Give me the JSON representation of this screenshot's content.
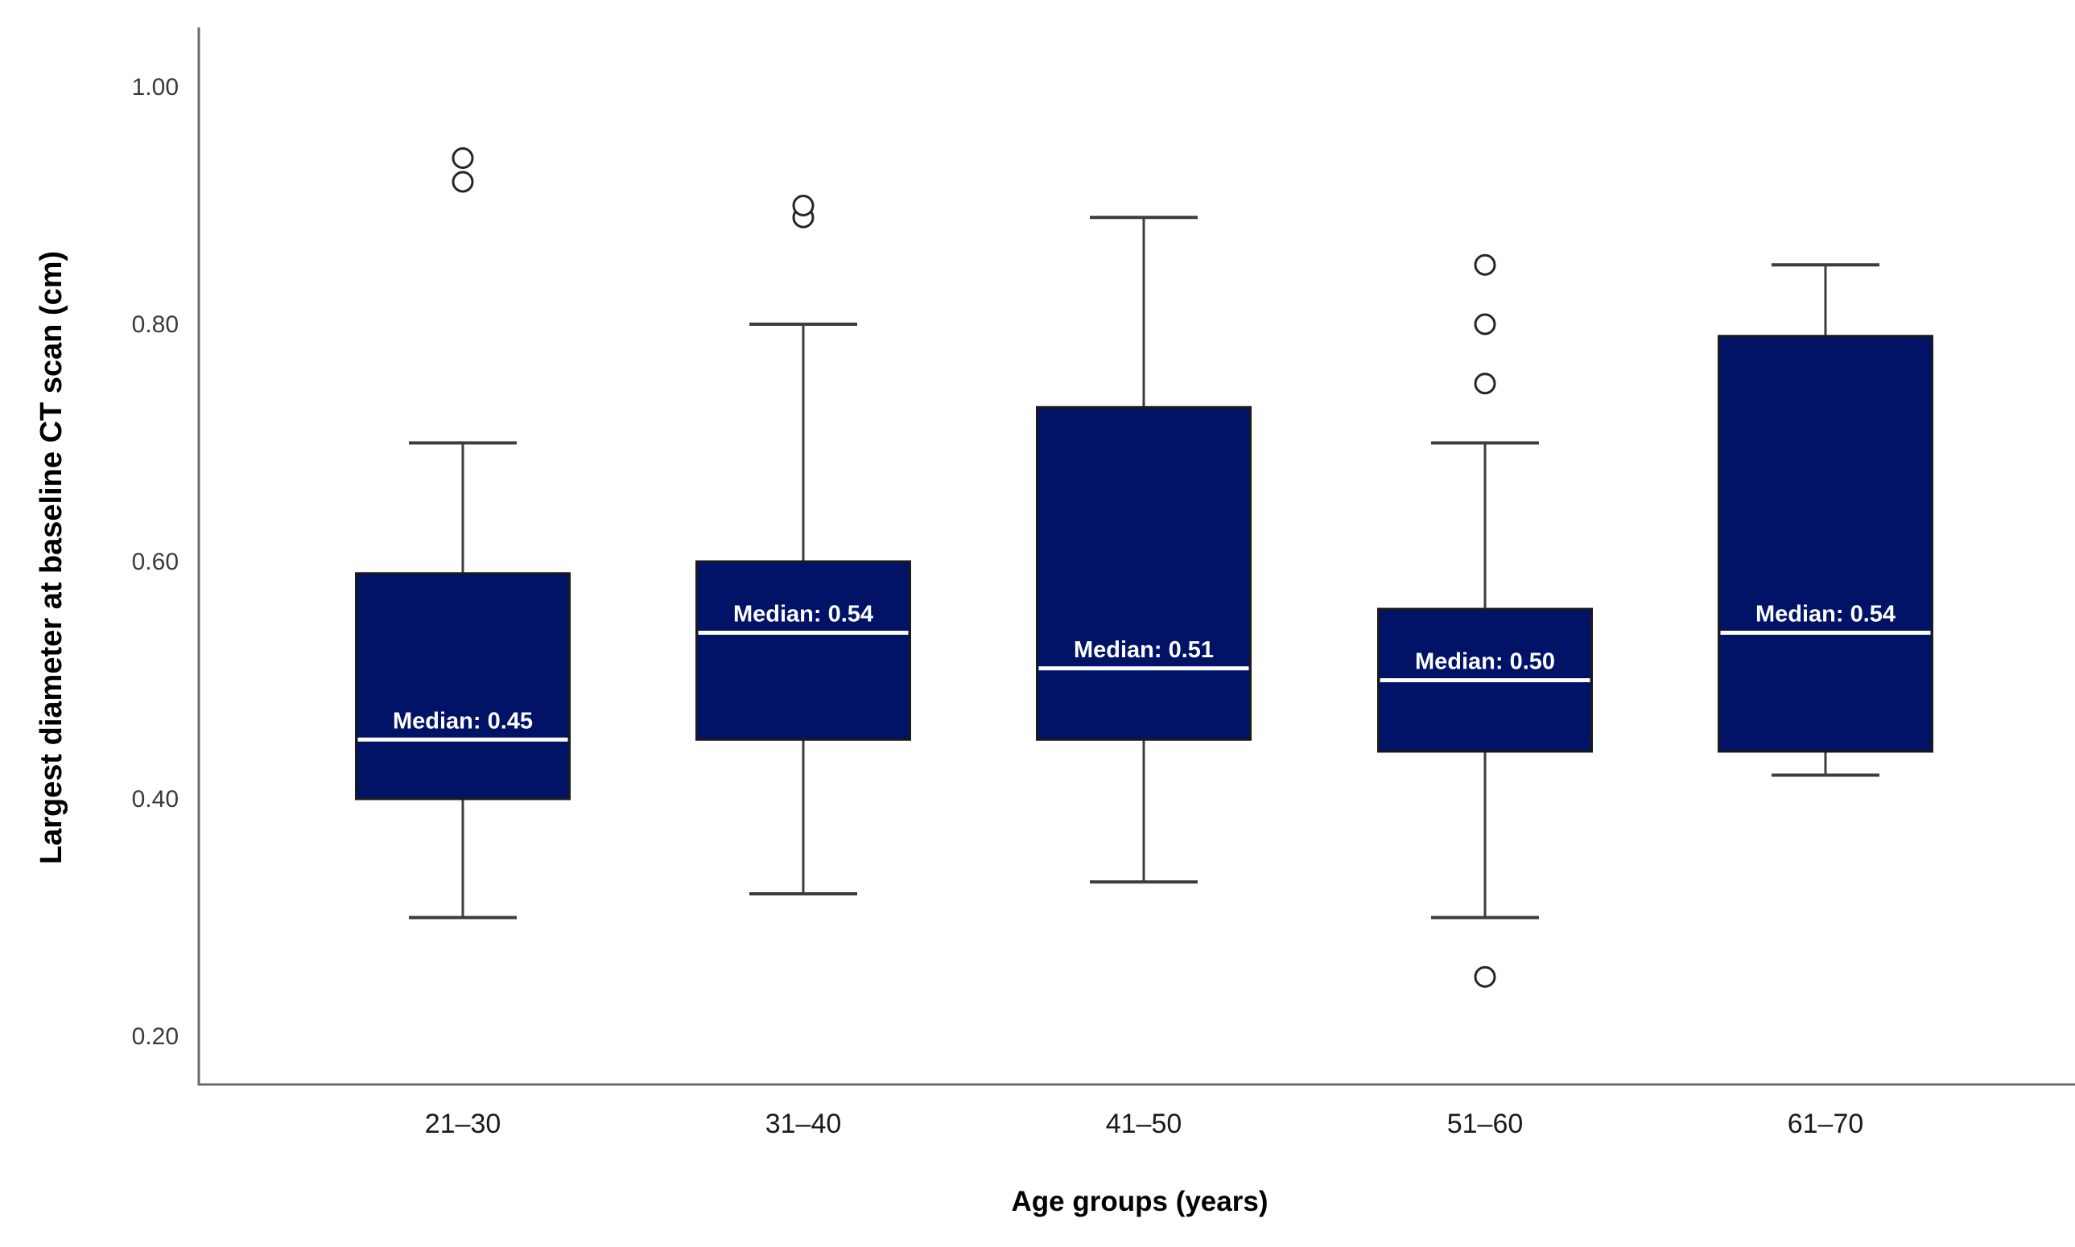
{
  "chart_data": {
    "type": "boxplot",
    "title": "",
    "xlabel": "Age groups (years)",
    "ylabel": "Largest diameter at baseline CT scan (cm)",
    "ylim": [
      0.15,
      1.05
    ],
    "grid": false,
    "legend": false,
    "yticks": [
      {
        "value": 1.0,
        "label": "1.00"
      },
      {
        "value": 0.8,
        "label": "0.80"
      },
      {
        "value": 0.6,
        "label": "0.60"
      },
      {
        "value": 0.4,
        "label": "0.40"
      },
      {
        "value": 0.2,
        "label": "0.20"
      }
    ],
    "categories": [
      "21–30",
      "31–40",
      "41–50",
      "51–60",
      "61–70"
    ],
    "boxes": [
      {
        "category": "21–30",
        "whisker_low": 0.3,
        "q1": 0.4,
        "median": 0.45,
        "q3": 0.59,
        "whisker_high": 0.7,
        "outliers": [
          0.92,
          0.94
        ],
        "median_label": "Median: 0.45"
      },
      {
        "category": "31–40",
        "whisker_low": 0.32,
        "q1": 0.45,
        "median": 0.54,
        "q3": 0.6,
        "whisker_high": 0.8,
        "outliers": [
          0.89,
          0.9
        ],
        "outliers_note": "",
        "median_label": "Median: 0.54"
      },
      {
        "category": "41–50",
        "whisker_low": 0.33,
        "q1": 0.45,
        "median": 0.51,
        "q3": 0.73,
        "whisker_high": 0.89,
        "outliers": [],
        "median_label": "Median: 0.51"
      },
      {
        "category": "51–60",
        "whisker_low": 0.3,
        "q1": 0.44,
        "median": 0.5,
        "q3": 0.56,
        "whisker_high": 0.7,
        "outliers": [
          0.25,
          0.75,
          0.8,
          0.85
        ],
        "median_label": "Median: 0.50"
      },
      {
        "category": "61–70",
        "whisker_low": 0.42,
        "q1": 0.44,
        "median": 0.54,
        "q3": 0.79,
        "whisker_high": 0.85,
        "outliers": [],
        "median_label": "Median: 0.54"
      }
    ],
    "colors": {
      "box_fill": "#011367",
      "box_border": "#1a1a1a",
      "median_line": "#ffffff",
      "median_text": "#ffffff",
      "whisker": "#3d3d3d",
      "axis": "#6b6b6b",
      "tick_text": "#3a3a3a",
      "category_text": "#1a1a1a",
      "outlier_stroke": "#262626",
      "outlier_fill": "#ffffff",
      "background": "#ffffff"
    }
  }
}
